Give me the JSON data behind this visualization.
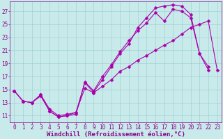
{
  "xlabel": "Windchill (Refroidissement éolien,°C)",
  "bg_color": "#c8eaea",
  "line_color": "#aa00aa",
  "tick_color": "#880088",
  "xlim": [
    -0.5,
    23.5
  ],
  "ylim": [
    10.0,
    28.5
  ],
  "xticks": [
    0,
    1,
    2,
    3,
    4,
    5,
    6,
    7,
    8,
    9,
    10,
    11,
    12,
    13,
    14,
    15,
    16,
    17,
    18,
    19,
    20,
    21,
    22,
    23
  ],
  "yticks": [
    11,
    13,
    15,
    17,
    19,
    21,
    23,
    25,
    27
  ],
  "grid_color": "#99cccc",
  "line1_x": [
    0,
    1,
    2,
    3,
    4,
    5,
    6,
    7,
    8,
    9,
    10,
    11,
    12,
    13,
    14,
    15,
    16,
    17,
    18,
    19,
    20,
    21,
    22
  ],
  "line1_y": [
    14.8,
    13.2,
    13.0,
    14.2,
    11.7,
    10.8,
    11.0,
    11.2,
    16.2,
    14.8,
    17.0,
    18.8,
    20.8,
    22.5,
    24.0,
    25.2,
    26.8,
    25.5,
    27.3,
    27.0,
    26.0,
    20.5,
    18.0
  ],
  "line2_x": [
    0,
    1,
    2,
    3,
    4,
    5,
    6,
    7,
    8,
    9,
    10,
    11,
    12,
    13,
    14,
    15,
    16,
    17,
    18,
    19,
    20,
    21,
    22,
    23
  ],
  "line2_y": [
    14.8,
    13.2,
    13.0,
    14.0,
    11.7,
    10.8,
    11.0,
    11.5,
    15.2,
    14.5,
    15.5,
    16.5,
    17.8,
    18.5,
    19.5,
    20.2,
    21.0,
    21.8,
    22.5,
    23.5,
    24.5,
    25.0,
    25.5,
    18.0
  ],
  "line3_x": [
    0,
    1,
    2,
    3,
    4,
    5,
    6,
    7,
    8,
    9,
    10,
    11,
    12,
    13,
    14,
    15,
    16,
    17,
    18,
    19,
    20,
    21,
    22
  ],
  "line3_y": [
    14.8,
    13.2,
    13.0,
    14.2,
    12.0,
    11.0,
    11.2,
    11.5,
    16.0,
    14.6,
    16.5,
    18.5,
    20.5,
    22.0,
    24.5,
    26.0,
    27.5,
    27.8,
    28.0,
    27.8,
    26.5,
    20.5,
    18.5
  ],
  "marker_size": 2.5,
  "line_width": 0.8,
  "tick_fontsize": 5.5,
  "label_fontsize": 6.5,
  "figsize": [
    3.2,
    2.0
  ],
  "dpi": 100
}
